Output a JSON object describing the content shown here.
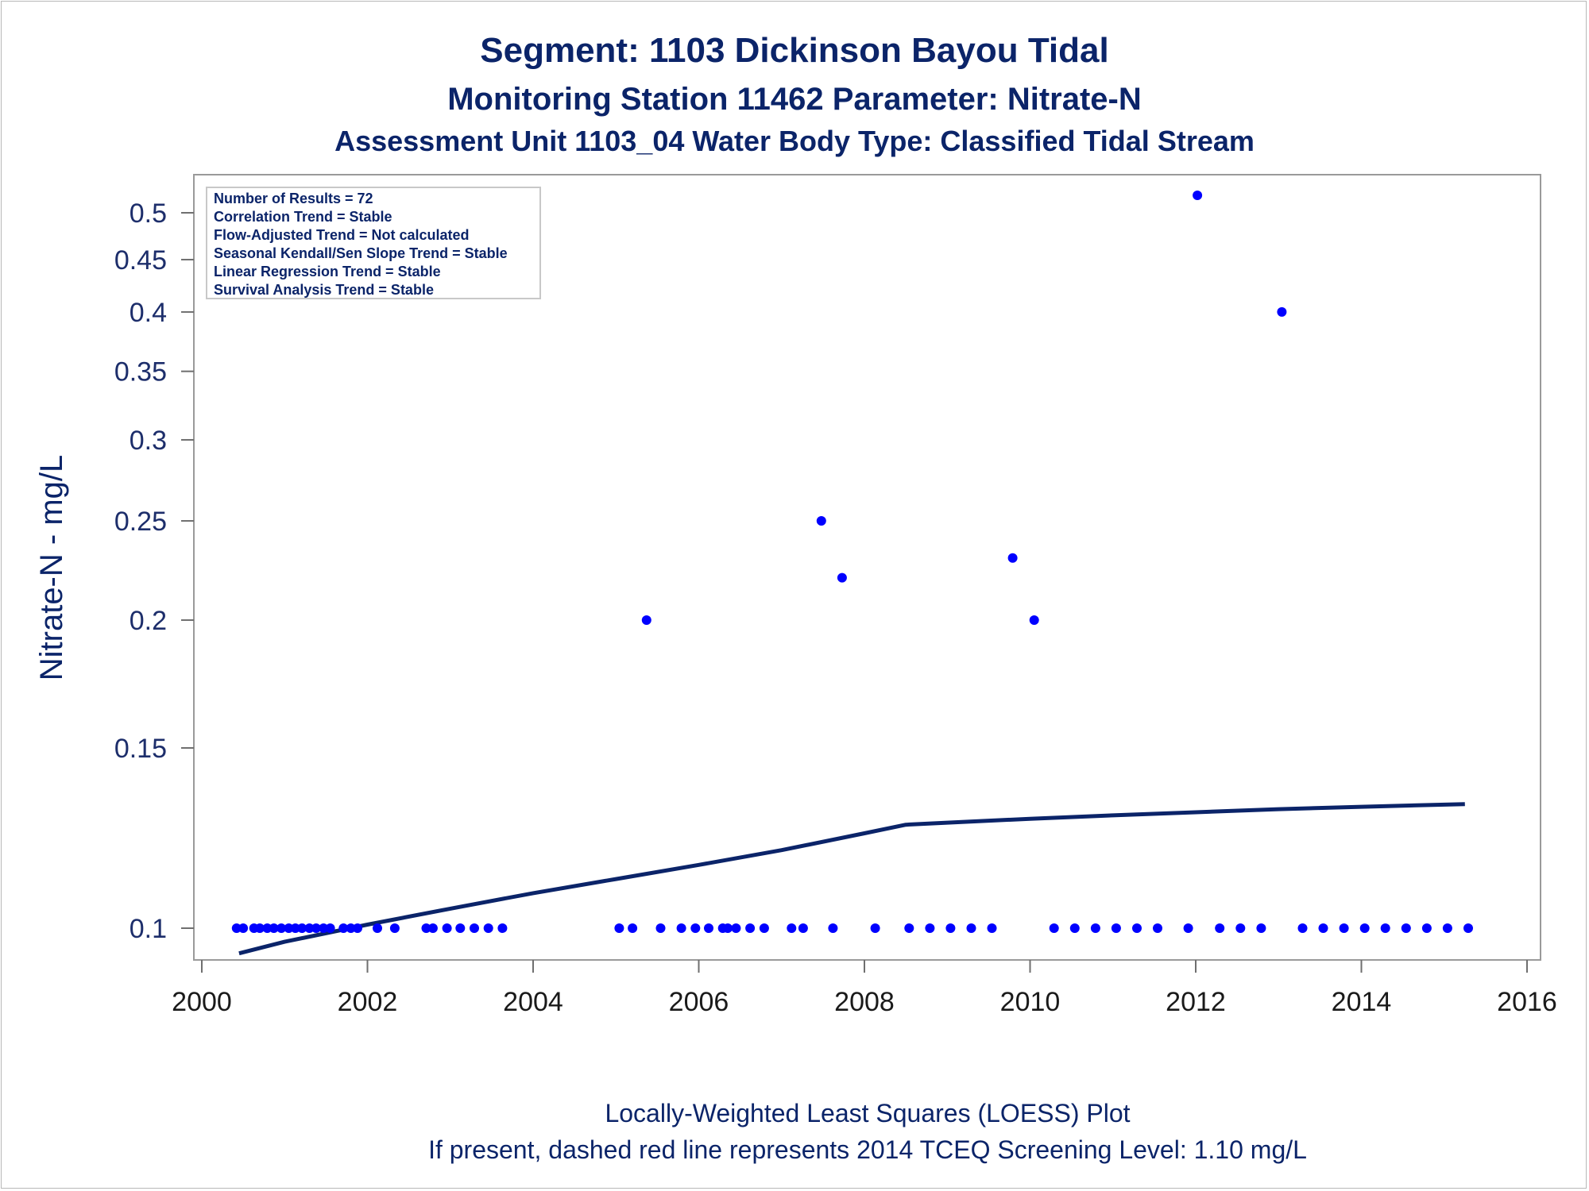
{
  "chart_data": {
    "type": "scatter",
    "title": "Segment: 1103  Dickinson Bayou Tidal",
    "subtitle": "Monitoring Station 11462 Parameter: Nitrate-N",
    "subtitle2": "Assessment Unit 1103_04   Water Body Type: Classified Tidal Stream",
    "xlabel": "",
    "ylabel": "Nitrate-N - mg/L",
    "y_scale": "log",
    "xlim": [
      2000,
      2016
    ],
    "ylim": [
      0.093,
      0.535
    ],
    "x_ticks": [
      "2000",
      "2002",
      "2004",
      "2006",
      "2008",
      "2010",
      "2012",
      "2014",
      "2016"
    ],
    "y_ticks": [
      "0.1",
      "0.15",
      "0.2",
      "0.25",
      "0.3",
      "0.35",
      "0.4",
      "0.45",
      "0.5"
    ],
    "grid": false,
    "stats_box": [
      "Number of Results = 72",
      "Correlation Trend = Stable",
      "Flow-Adjusted Trend = Not calculated",
      "Seasonal Kendall/Sen Slope Trend = Stable",
      "Linear Regression Trend = Stable",
      "Survival Analysis Trend = Stable"
    ],
    "points": {
      "x": [
        2000.42,
        2000.5,
        2000.63,
        2000.7,
        2000.79,
        2000.87,
        2000.96,
        2001.13,
        2001.21,
        2001.3,
        2001.38,
        2001.47,
        2001.55,
        2001.71,
        2001.8,
        2001.88,
        2002.12,
        2002.33,
        2002.71,
        2002.79,
        2002.96,
        2003.12,
        2003.29,
        2003.46,
        2003.63,
        2005.04,
        2005.2,
        2005.54,
        2005.79,
        2005.96,
        2006.12,
        2006.29,
        2006.35,
        2006.45,
        2006.62,
        2006.79,
        2007.12,
        2007.26,
        2007.62,
        2008.13,
        2008.54,
        2008.79,
        2009.04,
        2009.29,
        2009.54,
        2010.29,
        2010.54,
        2010.79,
        2011.04,
        2011.29,
        2011.54,
        2011.91,
        2012.29,
        2012.54,
        2012.79,
        2013.29,
        2013.54,
        2013.79,
        2014.04,
        2014.29,
        2014.54,
        2014.79,
        2015.04,
        2015.29,
        2005.37,
        2007.48,
        2007.73,
        2009.79,
        2010.05,
        2012.02,
        2013.04,
        2001.05
      ],
      "y": [
        0.1,
        0.1,
        0.1,
        0.1,
        0.1,
        0.1,
        0.1,
        0.1,
        0.1,
        0.1,
        0.1,
        0.1,
        0.1,
        0.1,
        0.1,
        0.1,
        0.1,
        0.1,
        0.1,
        0.1,
        0.1,
        0.1,
        0.1,
        0.1,
        0.1,
        0.1,
        0.1,
        0.1,
        0.1,
        0.1,
        0.1,
        0.1,
        0.1,
        0.1,
        0.1,
        0.1,
        0.1,
        0.1,
        0.1,
        0.1,
        0.1,
        0.1,
        0.1,
        0.1,
        0.1,
        0.1,
        0.1,
        0.1,
        0.1,
        0.1,
        0.1,
        0.1,
        0.1,
        0.1,
        0.1,
        0.1,
        0.1,
        0.1,
        0.1,
        0.1,
        0.1,
        0.1,
        0.1,
        0.1,
        0.2,
        0.25,
        0.22,
        0.23,
        0.2,
        0.52,
        0.4,
        0.1
      ],
      "color": "#0000ff"
    },
    "loess": {
      "x": [
        2000.45,
        2001.0,
        2002.0,
        2003.0,
        2004.0,
        2005.0,
        2006.0,
        2007.0,
        2008.0,
        2008.5,
        2009.0,
        2010.0,
        2011.0,
        2012.0,
        2013.0,
        2014.0,
        2015.25
      ],
      "y": [
        0.0945,
        0.097,
        0.1008,
        0.1045,
        0.1082,
        0.1117,
        0.1153,
        0.1192,
        0.1238,
        0.1262,
        0.1268,
        0.1279,
        0.1289,
        0.1298,
        0.1307,
        0.1314,
        0.1322
      ],
      "color": "#0b2469"
    },
    "footnotes": [
      "Locally-Weighted Least Squares (LOESS) Plot",
      "If present, dashed red line represents 2014 TCEQ Screening Level: 1.10 mg/L"
    ]
  }
}
